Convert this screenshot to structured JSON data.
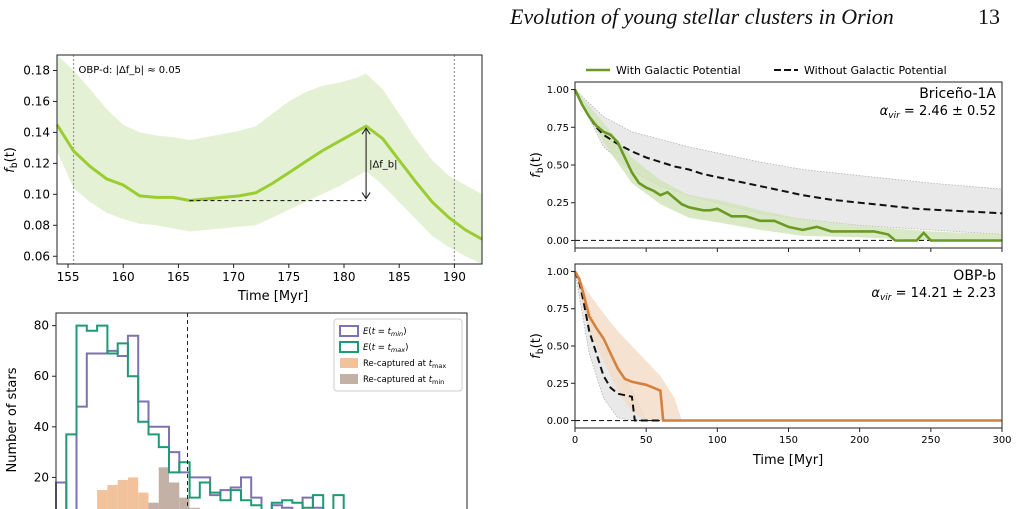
{
  "header": {
    "running_title": "Evolution of young stellar clusters in Orion",
    "page_number": "13"
  },
  "colors": {
    "green": "#6a9a24",
    "green_band": "#dcecc6",
    "green_line_a": "#9acd32",
    "orange": "#d5813e",
    "orange_band": "#f3dbc6",
    "purple": "#7d72b2",
    "teal": "#1f9a74",
    "hist_fill_tmax": "#f1c29b",
    "hist_fill_tmin": "#c3b1a5"
  },
  "chart_data": [
    {
      "id": "panel_a",
      "type": "line",
      "annotation": "OBP-d: |Δf_b| ≈ 0.05",
      "delta_label": "|Δf_b|",
      "xlabel": "Time [Myr]",
      "ylabel": "f_b(t)",
      "xlim": [
        154,
        192.5
      ],
      "ylim": [
        0.055,
        0.19
      ],
      "xticks": [
        "155",
        "160",
        "165",
        "170",
        "175",
        "180",
        "185",
        "190"
      ],
      "yticks": [
        "0.06",
        "0.08",
        "0.10",
        "0.12",
        "0.14",
        "0.16",
        "0.18"
      ],
      "vlines": [
        155.5,
        190
      ],
      "delta": {
        "x": 182,
        "y_low": 0.096,
        "y_high": 0.144,
        "x_start": 166
      },
      "x": [
        154,
        155.5,
        157,
        158.5,
        160,
        161.5,
        163,
        164.5,
        166,
        167.5,
        169,
        170.5,
        172,
        173.5,
        175,
        176.5,
        178,
        179.5,
        181,
        182,
        183.5,
        185,
        186.5,
        188,
        189.5,
        191,
        192.5
      ],
      "y": [
        0.145,
        0.128,
        0.118,
        0.11,
        0.106,
        0.099,
        0.098,
        0.098,
        0.096,
        0.097,
        0.098,
        0.099,
        0.101,
        0.107,
        0.114,
        0.121,
        0.128,
        0.134,
        0.14,
        0.144,
        0.136,
        0.122,
        0.108,
        0.095,
        0.085,
        0.077,
        0.071
      ],
      "band_low": [
        0.128,
        0.104,
        0.095,
        0.088,
        0.084,
        0.081,
        0.08,
        0.078,
        0.076,
        0.077,
        0.078,
        0.079,
        0.08,
        0.085,
        0.09,
        0.095,
        0.1,
        0.105,
        0.111,
        0.115,
        0.106,
        0.095,
        0.084,
        0.073,
        0.066,
        0.06,
        0.055
      ],
      "band_high": [
        0.19,
        0.18,
        0.168,
        0.155,
        0.145,
        0.14,
        0.138,
        0.137,
        0.135,
        0.137,
        0.139,
        0.141,
        0.144,
        0.152,
        0.16,
        0.166,
        0.17,
        0.172,
        0.175,
        0.178,
        0.168,
        0.152,
        0.136,
        0.122,
        0.112,
        0.106,
        0.1
      ]
    },
    {
      "id": "panel_b",
      "type": "histogram",
      "ylabel": "Number of stars",
      "ylim": [
        0,
        85
      ],
      "xlim": [
        0,
        20
      ],
      "yticks": [
        "20",
        "40",
        "60",
        "80"
      ],
      "vline": 6.4,
      "legend": [
        "E(t = t_min)",
        "E(t = t_max)",
        "Re-captured at t_max",
        "Re-captured at t_min"
      ],
      "bin_edges": [
        0,
        0.5,
        1,
        1.5,
        2,
        2.5,
        3,
        3.5,
        4,
        4.5,
        5,
        5.5,
        6,
        6.5,
        7,
        7.5,
        8,
        8.5,
        9,
        9.5,
        10,
        10.5,
        11,
        11.5,
        12,
        12.5,
        13,
        13.5,
        14,
        14.5,
        15,
        15.5,
        16,
        16.5,
        17,
        17.5,
        18,
        18.5,
        19,
        19.5,
        20
      ],
      "E_tmin": [
        18,
        1,
        48,
        69,
        69,
        70,
        68,
        76,
        50,
        40,
        40,
        30,
        22,
        20,
        20,
        13,
        15,
        16,
        20,
        12,
        7,
        9,
        8,
        7,
        12,
        8,
        6,
        7,
        5,
        4,
        6,
        4,
        5,
        5,
        3,
        3,
        6,
        5,
        3,
        5
      ],
      "E_tmax": [
        1,
        37,
        80,
        78,
        80,
        69,
        73,
        60,
        42,
        37,
        32,
        22,
        26,
        12,
        18,
        14,
        11,
        15,
        11,
        9,
        7,
        10,
        11,
        10,
        8,
        13,
        6,
        13,
        4,
        2,
        6,
        5,
        4,
        3,
        6,
        3,
        5,
        2,
        0,
        7
      ],
      "recap_tmax": [
        0,
        0,
        0,
        0,
        15,
        17,
        19,
        20,
        14,
        8,
        5,
        3,
        2,
        0,
        0,
        0,
        0,
        0,
        0,
        0,
        0,
        0,
        0,
        0,
        0,
        0,
        0,
        0,
        0,
        0,
        0,
        0,
        0,
        0,
        0,
        0,
        0,
        0,
        0,
        0
      ],
      "recap_tmin": [
        0,
        0,
        0,
        0,
        0,
        0,
        0,
        0,
        6,
        10,
        24,
        18,
        12,
        8,
        6,
        0,
        0,
        0,
        0,
        0,
        0,
        0,
        0,
        0,
        0,
        0,
        0,
        0,
        0,
        0,
        0,
        0,
        0,
        0,
        0,
        0,
        0,
        0,
        0,
        0
      ]
    },
    {
      "id": "panel_c",
      "type": "line",
      "legend": [
        "With Galactic Potential",
        "Without Galactic Potential"
      ],
      "cluster_label": "Briceño-1A",
      "alpha_label": "α_vir = 2.46 ± 0.52",
      "ylabel": "f_b(t)",
      "xlim": [
        0,
        300
      ],
      "ylim": [
        -0.05,
        1.05
      ],
      "yticks": [
        "0.00",
        "0.25",
        "0.50",
        "0.75",
        "1.00"
      ],
      "series": [
        {
          "name": "With Galactic Potential",
          "x": [
            0,
            5,
            10,
            15,
            20,
            25,
            30,
            35,
            40,
            45,
            50,
            55,
            60,
            65,
            70,
            75,
            80,
            85,
            90,
            95,
            100,
            110,
            120,
            130,
            140,
            150,
            160,
            170,
            180,
            190,
            200,
            210,
            220,
            225,
            240,
            245,
            250,
            260,
            280,
            300
          ],
          "y": [
            1.0,
            0.9,
            0.82,
            0.76,
            0.72,
            0.7,
            0.65,
            0.55,
            0.45,
            0.38,
            0.35,
            0.33,
            0.3,
            0.32,
            0.28,
            0.24,
            0.22,
            0.21,
            0.2,
            0.2,
            0.21,
            0.16,
            0.16,
            0.13,
            0.13,
            0.09,
            0.07,
            0.09,
            0.06,
            0.06,
            0.06,
            0.06,
            0.04,
            0.0,
            0.0,
            0.05,
            0.0,
            0.0,
            0.0,
            0.0
          ]
        },
        {
          "name": "Without Galactic Potential",
          "x": [
            0,
            5,
            10,
            15,
            20,
            30,
            40,
            50,
            60,
            70,
            80,
            90,
            100,
            120,
            140,
            160,
            180,
            200,
            220,
            240,
            260,
            280,
            300
          ],
          "y": [
            1.0,
            0.9,
            0.82,
            0.75,
            0.7,
            0.64,
            0.59,
            0.55,
            0.52,
            0.49,
            0.47,
            0.44,
            0.42,
            0.38,
            0.34,
            0.3,
            0.27,
            0.25,
            0.23,
            0.21,
            0.2,
            0.19,
            0.18
          ]
        }
      ],
      "band_with": {
        "x": [
          0,
          20,
          40,
          60,
          80,
          100,
          130,
          160,
          200,
          250,
          300
        ],
        "low": [
          1.0,
          0.65,
          0.38,
          0.24,
          0.15,
          0.12,
          0.07,
          0.03,
          0.02,
          0.0,
          0.0
        ],
        "high": [
          1.0,
          0.78,
          0.55,
          0.4,
          0.3,
          0.27,
          0.2,
          0.14,
          0.1,
          0.06,
          0.04
        ]
      },
      "band_without": {
        "x": [
          0,
          20,
          40,
          60,
          80,
          100,
          130,
          160,
          200,
          250,
          300
        ],
        "low": [
          1.0,
          0.62,
          0.46,
          0.36,
          0.3,
          0.25,
          0.18,
          0.14,
          0.1,
          0.07,
          0.04
        ],
        "high": [
          1.0,
          0.82,
          0.72,
          0.67,
          0.62,
          0.58,
          0.52,
          0.47,
          0.43,
          0.38,
          0.34
        ]
      }
    },
    {
      "id": "panel_d",
      "type": "line",
      "cluster_label": "OBP-b",
      "alpha_label": "α_vir = 14.21 ± 2.23",
      "xlabel": "Time [Myr]",
      "ylabel": "f_b(t)",
      "xlim": [
        0,
        300
      ],
      "ylim": [
        -0.05,
        1.05
      ],
      "xticks": [
        "0",
        "50",
        "100",
        "150",
        "200",
        "250",
        "300"
      ],
      "yticks": [
        "0.00",
        "0.25",
        "0.50",
        "0.75",
        "1.00"
      ],
      "series": [
        {
          "name": "With Galactic Potential",
          "x": [
            0,
            3,
            6,
            10,
            15,
            20,
            25,
            30,
            35,
            40,
            45,
            50,
            55,
            60,
            62,
            300
          ],
          "y": [
            1.0,
            0.95,
            0.85,
            0.7,
            0.62,
            0.55,
            0.45,
            0.35,
            0.28,
            0.26,
            0.25,
            0.24,
            0.22,
            0.2,
            0.0,
            0.0
          ]
        },
        {
          "name": "Without Galactic Potential",
          "x": [
            0,
            3,
            6,
            10,
            15,
            20,
            25,
            30,
            35,
            40,
            42,
            300
          ],
          "y": [
            1.0,
            0.93,
            0.8,
            0.6,
            0.45,
            0.3,
            0.22,
            0.18,
            0.17,
            0.16,
            0.0,
            0.0
          ]
        }
      ],
      "band_with": {
        "x": [
          0,
          10,
          20,
          30,
          40,
          50,
          60,
          70,
          75
        ],
        "low": [
          1.0,
          0.6,
          0.4,
          0.2,
          0.06,
          0.0,
          0.0,
          0.0,
          0.0
        ],
        "high": [
          1.0,
          0.85,
          0.72,
          0.6,
          0.5,
          0.4,
          0.3,
          0.15,
          0.0
        ]
      },
      "band_without": {
        "x": [
          0,
          10,
          20,
          30,
          40,
          50
        ],
        "low": [
          1.0,
          0.45,
          0.15,
          0.02,
          0.0,
          0.0
        ],
        "high": [
          1.0,
          0.75,
          0.5,
          0.35,
          0.2,
          0.0
        ]
      }
    }
  ]
}
